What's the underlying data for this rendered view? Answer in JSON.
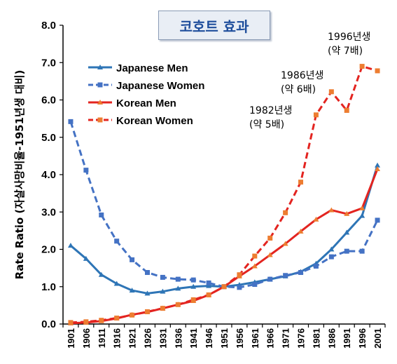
{
  "chart_data": {
    "type": "line",
    "title": "코호트 효과",
    "xlabel": "",
    "ylabel": "Rate Ratio (자살사망비율-1951년생 대비)",
    "x": [
      "1901",
      "1906",
      "1911",
      "1916",
      "1921",
      "1926",
      "1931",
      "1936",
      "1941",
      "1946",
      "1951",
      "1956",
      "1961",
      "1966",
      "1971",
      "1976",
      "1981",
      "1986",
      "1991",
      "1996",
      "2001"
    ],
    "ylim": [
      0,
      8
    ],
    "yticks": [
      "0.0",
      "1.0",
      "2.0",
      "3.0",
      "4.0",
      "5.0",
      "6.0",
      "7.0",
      "8.0"
    ],
    "grid": false,
    "legend_position": "top-left",
    "series": [
      {
        "name": "Japanese Men",
        "color": "#2e75b6",
        "dashed": false,
        "marker": "triangle",
        "values": [
          2.1,
          1.75,
          1.32,
          1.08,
          0.9,
          0.82,
          0.87,
          0.95,
          1.0,
          1.02,
          1.0,
          1.05,
          1.12,
          1.2,
          1.28,
          1.4,
          1.62,
          2.0,
          2.45,
          2.9,
          4.25
        ]
      },
      {
        "name": "Japanese Women",
        "color": "#4472c4",
        "dashed": true,
        "marker": "square",
        "values": [
          5.42,
          4.12,
          2.92,
          2.22,
          1.72,
          1.38,
          1.25,
          1.2,
          1.18,
          1.1,
          1.0,
          0.98,
          1.06,
          1.2,
          1.3,
          1.38,
          1.55,
          1.8,
          1.95,
          1.95,
          2.78
        ]
      },
      {
        "name": "Korean Men",
        "color": "#e32420",
        "dashed": false,
        "marker": "triangle",
        "values": [
          0.02,
          0.04,
          0.08,
          0.15,
          0.25,
          0.32,
          0.42,
          0.52,
          0.62,
          0.78,
          1.0,
          1.28,
          1.55,
          1.85,
          2.15,
          2.48,
          2.8,
          3.05,
          2.95,
          3.1,
          4.15
        ]
      },
      {
        "name": "Korean Women",
        "color": "#e32420",
        "dashed": true,
        "marker": "square",
        "values": [
          0.04,
          0.06,
          0.1,
          0.16,
          0.24,
          0.33,
          0.42,
          0.52,
          0.65,
          0.78,
          1.0,
          1.32,
          1.82,
          2.3,
          2.98,
          3.8,
          5.6,
          6.22,
          5.72,
          6.9,
          6.78
        ]
      }
    ],
    "annotations": [
      {
        "line1": "1982년생",
        "line2": "(약 5배)",
        "at_x": "1981",
        "at_y": 5.6
      },
      {
        "line1": "1986년생",
        "line2": "(약 6배)",
        "at_x": "1986",
        "at_y": 6.22
      },
      {
        "line1": "1996년생",
        "line2": "(약 7배)",
        "at_x": "1996",
        "at_y": 6.9
      }
    ]
  }
}
